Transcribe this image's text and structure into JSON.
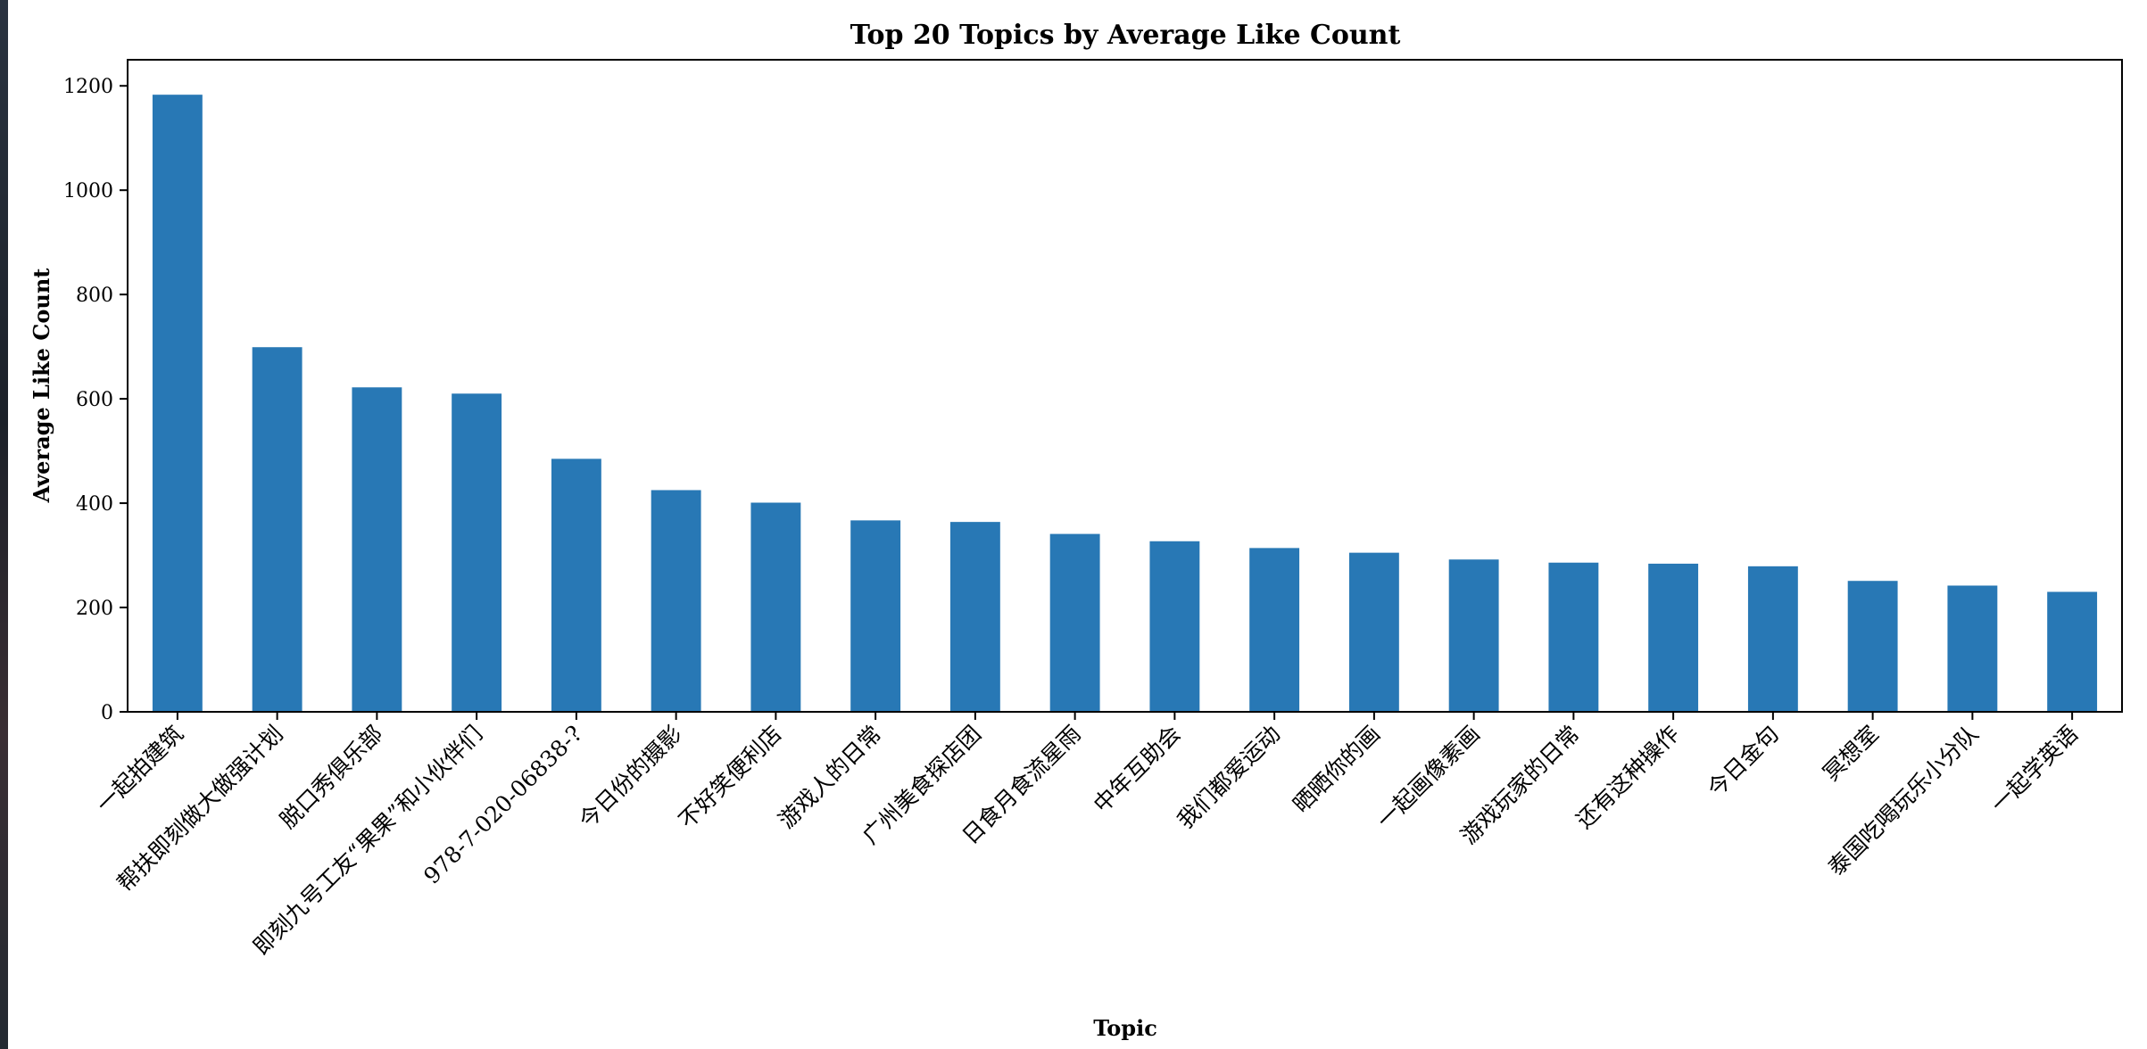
{
  "chart_data": {
    "type": "bar",
    "title": "Top 20 Topics by Average Like Count",
    "xlabel": "Topic",
    "ylabel": "Average Like Count",
    "ylim": [
      0,
      1250
    ],
    "yticks": [
      0,
      200,
      400,
      600,
      800,
      1000,
      1200
    ],
    "grid": false,
    "legend": "none",
    "bar_color": "#2878b5",
    "categories": [
      "一起拍建筑",
      "帮扶即刻做大做强计划",
      "脱口秀俱乐部",
      "即刻九号工友“果果”和小伙伴们",
      "978-7-020-06838-?",
      "今日份的摄影",
      "不好笑便利店",
      "游戏人的日常",
      "广州美食探店团",
      "日食月食流星雨",
      "中年互助会",
      "我们都爱运动",
      "晒晒你的画",
      "一起画像素画",
      "游戏玩家的日常",
      "还有这种操作",
      "今日金句",
      "冥想室",
      "泰国吃喝玩乐小分队",
      "一起学英语"
    ],
    "values": [
      1183,
      699,
      622,
      610,
      485,
      425,
      401,
      367,
      364,
      341,
      327,
      314,
      305,
      292,
      286,
      284,
      279,
      251,
      242,
      230
    ]
  }
}
